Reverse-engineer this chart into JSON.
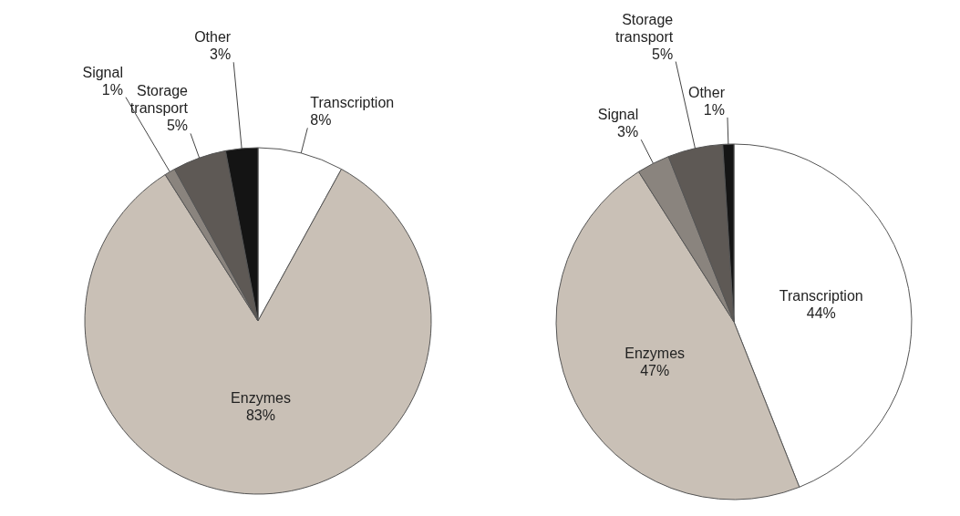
{
  "chart_data": [
    {
      "type": "pie",
      "categories": [
        "Transcription",
        "Enzymes",
        "Signal",
        "Storage\ntransport",
        "Other"
      ],
      "values": [
        8,
        83,
        1,
        5,
        3
      ],
      "value_labels": [
        "8%",
        "83%",
        "1%",
        "5%",
        "3%"
      ],
      "colors": [
        "#ffffff",
        "#c9c0b6",
        "#8a847e",
        "#5e5955",
        "#141414"
      ]
    },
    {
      "type": "pie",
      "categories": [
        "Transcription",
        "Enzymes",
        "Signal",
        "Storage\ntransport",
        "Other"
      ],
      "values": [
        44,
        47,
        3,
        5,
        1
      ],
      "value_labels": [
        "44%",
        "47%",
        "3%",
        "5%",
        "1%"
      ],
      "colors": [
        "#ffffff",
        "#c9c0b6",
        "#8a847e",
        "#5e5955",
        "#141414"
      ]
    }
  ]
}
